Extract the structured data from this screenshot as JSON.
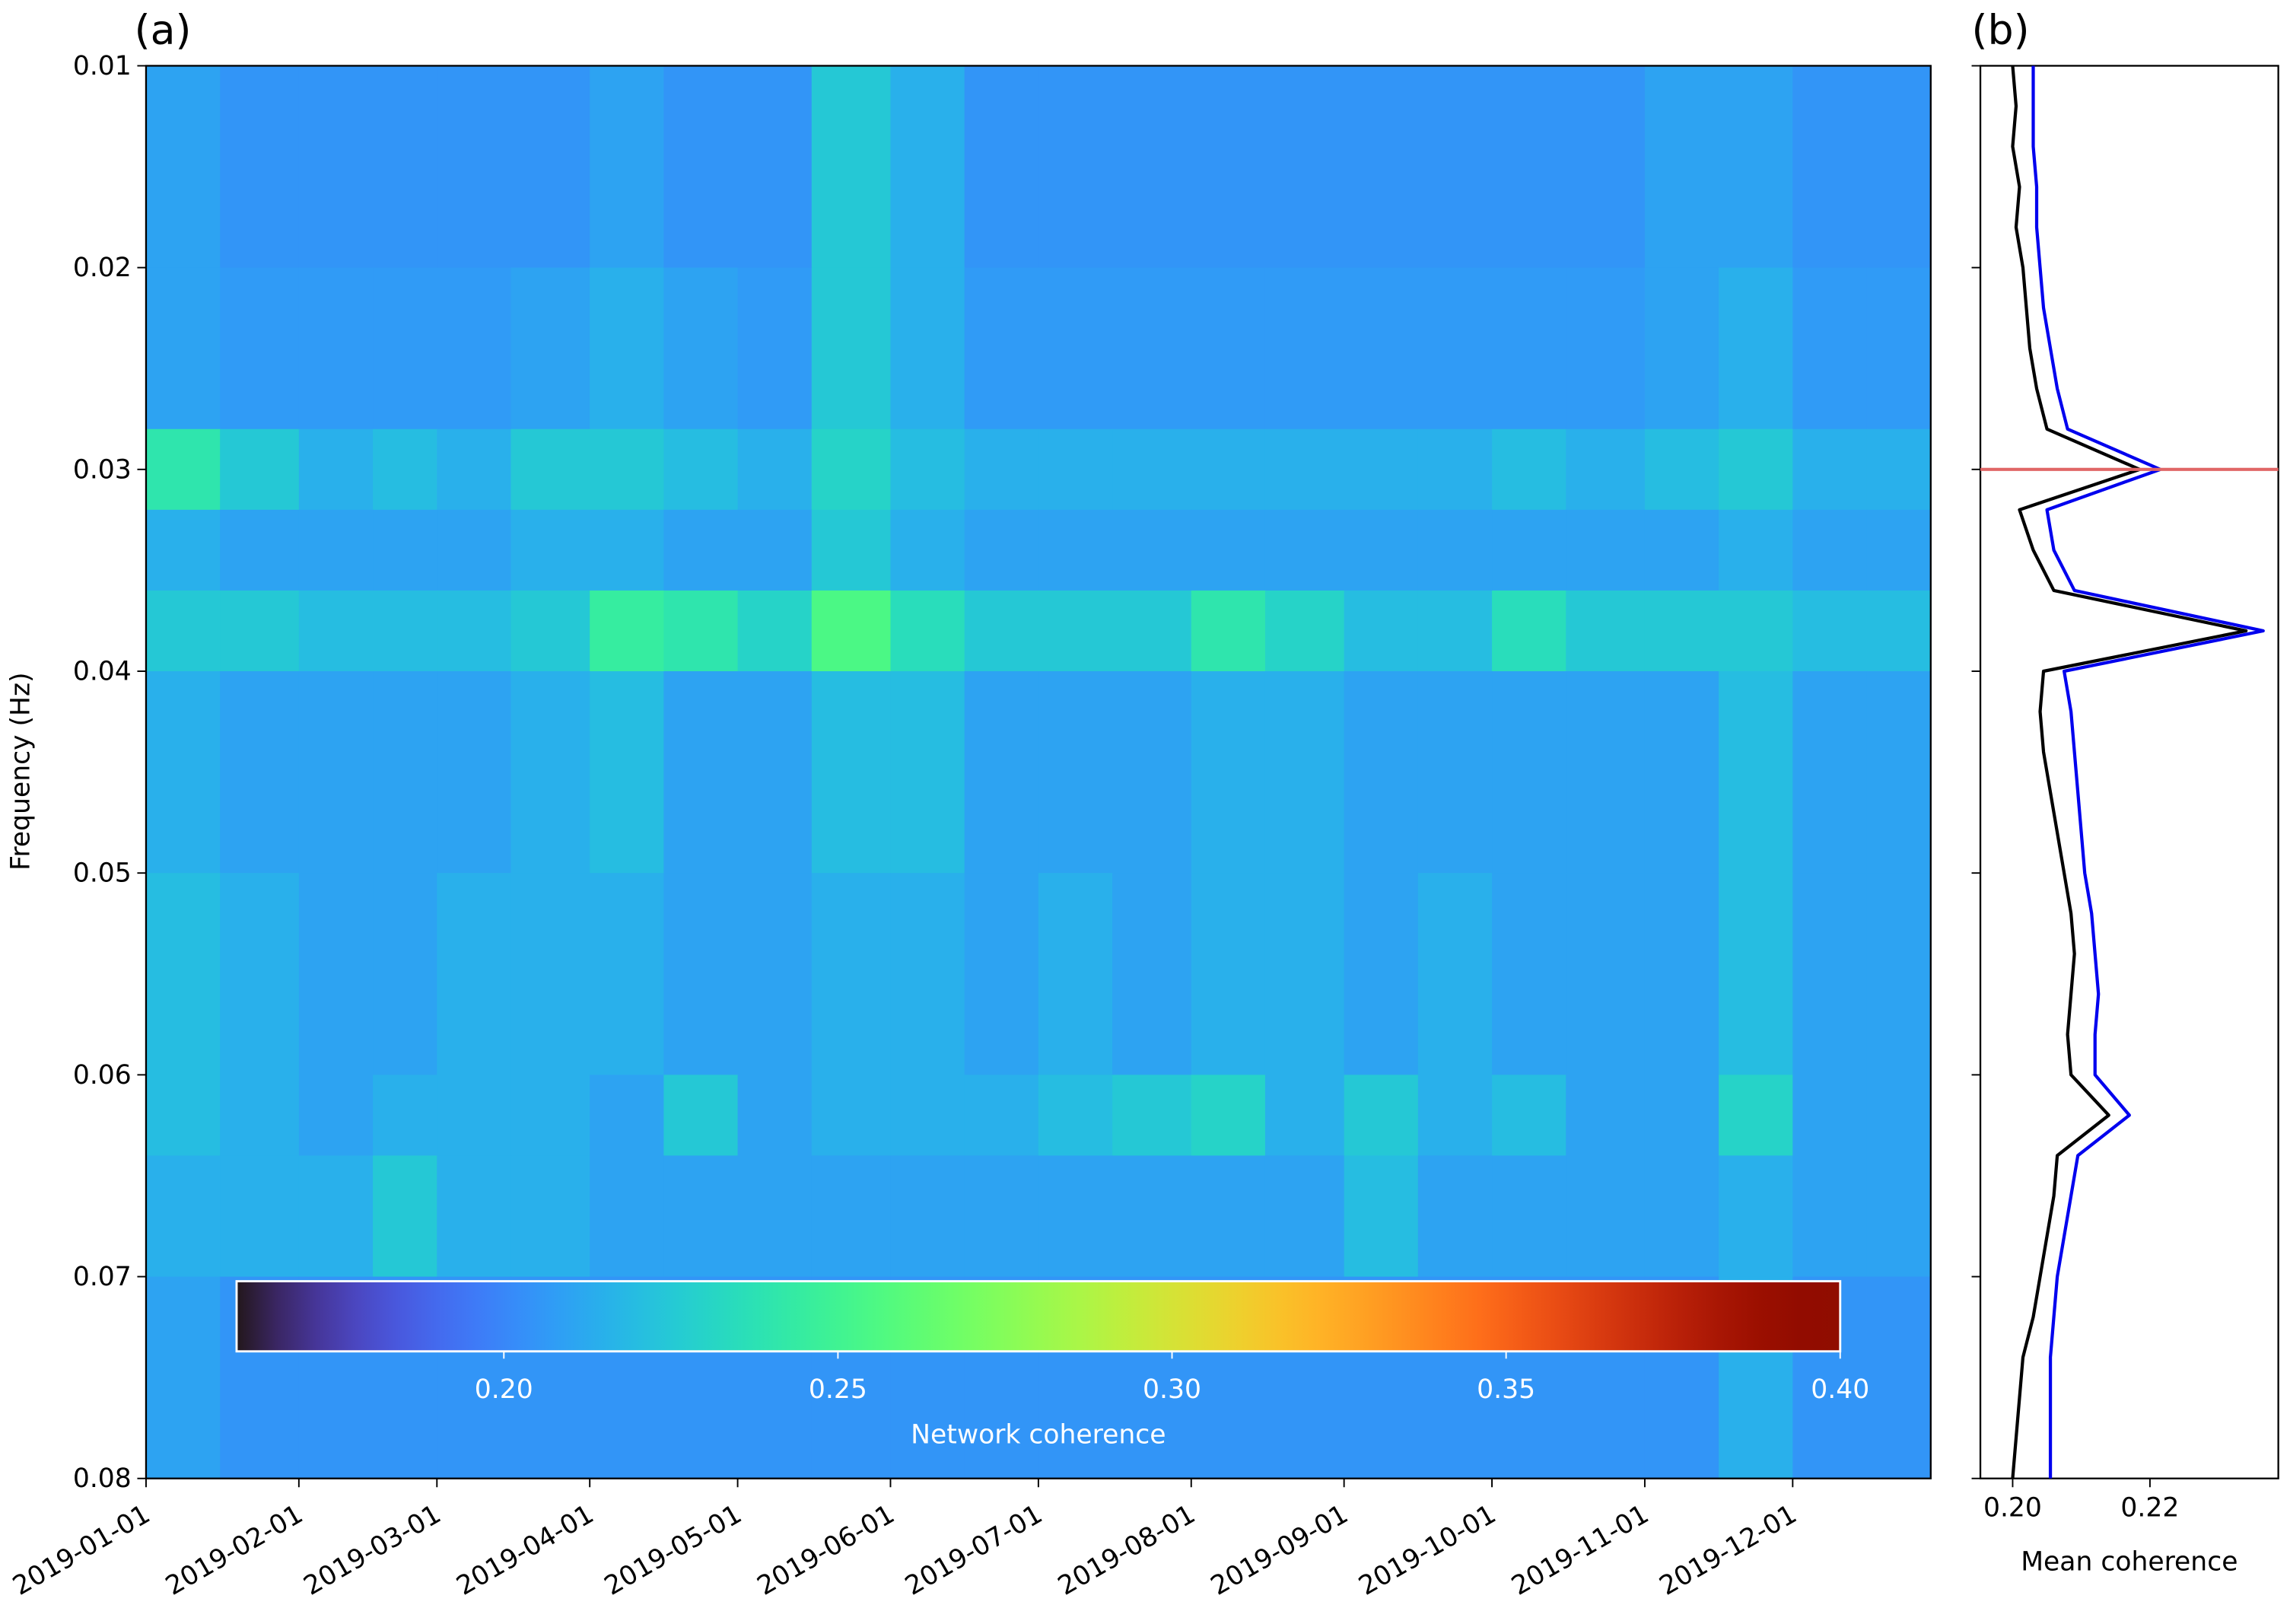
{
  "chart_data": [
    {
      "type": "heatmap",
      "label": "(a)",
      "ylabel": "Frequency (Hz)",
      "x_bins": [
        "2019-01-01",
        "2019-01-16",
        "2019-02-01",
        "2019-02-16",
        "2019-03-01",
        "2019-03-16",
        "2019-04-01",
        "2019-04-16",
        "2019-05-01",
        "2019-05-16",
        "2019-06-01",
        "2019-06-16",
        "2019-07-01",
        "2019-07-16",
        "2019-08-01",
        "2019-08-16",
        "2019-09-01",
        "2019-09-16",
        "2019-10-01",
        "2019-10-16",
        "2019-11-01",
        "2019-11-16",
        "2019-12-01",
        "2019-12-16",
        "2019-12-29"
      ],
      "y_bins": [
        0.01,
        0.02,
        0.028,
        0.032,
        0.036,
        0.04,
        0.05,
        0.06,
        0.064,
        0.07,
        0.08
      ],
      "values": [
        [
          0.21,
          0.205,
          0.205,
          0.205,
          0.205,
          0.205,
          0.21,
          0.205,
          0.205,
          0.225,
          0.215,
          0.205,
          0.205,
          0.205,
          0.205,
          0.205,
          0.205,
          0.205,
          0.205,
          0.205,
          0.21,
          0.21,
          0.205,
          0.205
        ],
        [
          0.21,
          0.207,
          0.207,
          0.207,
          0.207,
          0.21,
          0.215,
          0.21,
          0.207,
          0.225,
          0.215,
          0.207,
          0.207,
          0.207,
          0.207,
          0.207,
          0.207,
          0.207,
          0.207,
          0.207,
          0.21,
          0.215,
          0.207,
          0.207
        ],
        [
          0.24,
          0.225,
          0.215,
          0.22,
          0.215,
          0.225,
          0.225,
          0.22,
          0.215,
          0.23,
          0.22,
          0.215,
          0.215,
          0.215,
          0.215,
          0.215,
          0.215,
          0.215,
          0.22,
          0.215,
          0.22,
          0.225,
          0.215,
          0.215
        ],
        [
          0.215,
          0.21,
          0.21,
          0.21,
          0.21,
          0.215,
          0.215,
          0.21,
          0.21,
          0.225,
          0.215,
          0.21,
          0.21,
          0.21,
          0.21,
          0.21,
          0.21,
          0.21,
          0.21,
          0.21,
          0.21,
          0.215,
          0.21,
          0.21
        ],
        [
          0.225,
          0.225,
          0.22,
          0.22,
          0.22,
          0.225,
          0.245,
          0.24,
          0.23,
          0.255,
          0.235,
          0.225,
          0.225,
          0.225,
          0.24,
          0.23,
          0.22,
          0.22,
          0.235,
          0.225,
          0.225,
          0.225,
          0.22,
          0.22
        ],
        [
          0.215,
          0.21,
          0.21,
          0.21,
          0.21,
          0.215,
          0.22,
          0.21,
          0.21,
          0.22,
          0.22,
          0.21,
          0.21,
          0.21,
          0.215,
          0.215,
          0.21,
          0.21,
          0.21,
          0.21,
          0.21,
          0.22,
          0.21,
          0.21
        ],
        [
          0.22,
          0.215,
          0.21,
          0.21,
          0.215,
          0.215,
          0.215,
          0.21,
          0.21,
          0.215,
          0.215,
          0.21,
          0.215,
          0.21,
          0.215,
          0.215,
          0.21,
          0.215,
          0.21,
          0.21,
          0.21,
          0.22,
          0.21,
          0.21
        ],
        [
          0.22,
          0.215,
          0.21,
          0.215,
          0.215,
          0.215,
          0.21,
          0.225,
          0.21,
          0.215,
          0.215,
          0.215,
          0.22,
          0.225,
          0.23,
          0.215,
          0.225,
          0.215,
          0.22,
          0.21,
          0.21,
          0.23,
          0.21,
          0.21
        ],
        [
          0.215,
          0.215,
          0.215,
          0.225,
          0.215,
          0.215,
          0.21,
          0.21,
          0.21,
          0.21,
          0.21,
          0.21,
          0.21,
          0.21,
          0.21,
          0.21,
          0.22,
          0.21,
          0.21,
          0.21,
          0.21,
          0.215,
          0.21,
          0.21
        ],
        [
          0.21,
          0.205,
          0.205,
          0.205,
          0.205,
          0.205,
          0.205,
          0.205,
          0.205,
          0.205,
          0.205,
          0.205,
          0.205,
          0.205,
          0.205,
          0.205,
          0.205,
          0.205,
          0.205,
          0.205,
          0.205,
          0.215,
          0.205,
          0.205
        ]
      ],
      "xlim": [
        "2019-01-01",
        "2019-12-29"
      ],
      "xticks": [
        "2019-01-01",
        "2019-02-01",
        "2019-03-01",
        "2019-04-01",
        "2019-05-01",
        "2019-06-01",
        "2019-07-01",
        "2019-08-01",
        "2019-09-01",
        "2019-10-01",
        "2019-11-01",
        "2019-12-01"
      ],
      "ylim": [
        0.01,
        0.08
      ],
      "y_inverted": true,
      "yticks": [
        0.01,
        0.02,
        0.03,
        0.04,
        0.05,
        0.06,
        0.07,
        0.08
      ],
      "colormap": "turbo",
      "clim": [
        0.16,
        0.4
      ],
      "colorbar": {
        "label": "Network coherence",
        "ticks": [
          {
            "value": 0.2,
            "label": "0.20"
          },
          {
            "value": 0.25,
            "label": "0.25"
          },
          {
            "value": 0.3,
            "label": "0.30"
          },
          {
            "value": 0.35,
            "label": "0.35"
          },
          {
            "value": 0.4,
            "label": "0.40"
          }
        ]
      }
    },
    {
      "type": "line",
      "label": "(b)",
      "xlabel": "Mean coherence",
      "orientation": "vertical",
      "y": [
        0.01,
        0.012,
        0.014,
        0.016,
        0.018,
        0.02,
        0.022,
        0.024,
        0.026,
        0.028,
        0.03,
        0.032,
        0.034,
        0.036,
        0.038,
        0.04,
        0.042,
        0.044,
        0.046,
        0.048,
        0.05,
        0.052,
        0.054,
        0.056,
        0.058,
        0.06,
        0.062,
        0.064,
        0.066,
        0.068,
        0.07,
        0.072,
        0.074,
        0.076,
        0.078,
        0.08
      ],
      "series": [
        {
          "color": "#0000ee",
          "values": [
            0.203,
            0.203,
            0.203,
            0.2035,
            0.2035,
            0.204,
            0.2045,
            0.2055,
            0.2065,
            0.208,
            0.2215,
            0.205,
            0.206,
            0.209,
            0.2365,
            0.2075,
            0.2085,
            0.209,
            0.2095,
            0.21,
            0.2105,
            0.2115,
            0.212,
            0.2125,
            0.212,
            0.212,
            0.217,
            0.2095,
            0.2085,
            0.2075,
            0.2065,
            0.206,
            0.2055,
            0.2055,
            0.2055,
            0.2055
          ]
        },
        {
          "color": "#000000",
          "values": [
            0.2,
            0.2005,
            0.2,
            0.201,
            0.2005,
            0.2015,
            0.202,
            0.2025,
            0.2035,
            0.205,
            0.2185,
            0.201,
            0.203,
            0.206,
            0.234,
            0.2045,
            0.204,
            0.2045,
            0.2055,
            0.2065,
            0.2075,
            0.2085,
            0.209,
            0.2085,
            0.208,
            0.2085,
            0.214,
            0.2065,
            0.206,
            0.205,
            0.204,
            0.203,
            0.2015,
            0.201,
            0.2005,
            0.2
          ]
        }
      ],
      "xlim": [
        0.1953,
        0.2387
      ],
      "xticks": [
        {
          "value": 0.2,
          "label": "0.20"
        },
        {
          "value": 0.22,
          "label": "0.22"
        }
      ],
      "ylim": [
        0.01,
        0.08
      ],
      "y_inverted": true,
      "yticks": [
        0.01,
        0.02,
        0.03,
        0.04,
        0.05,
        0.06,
        0.07,
        0.08
      ],
      "hline": {
        "value": 0.03,
        "color": "#e06666"
      }
    }
  ]
}
